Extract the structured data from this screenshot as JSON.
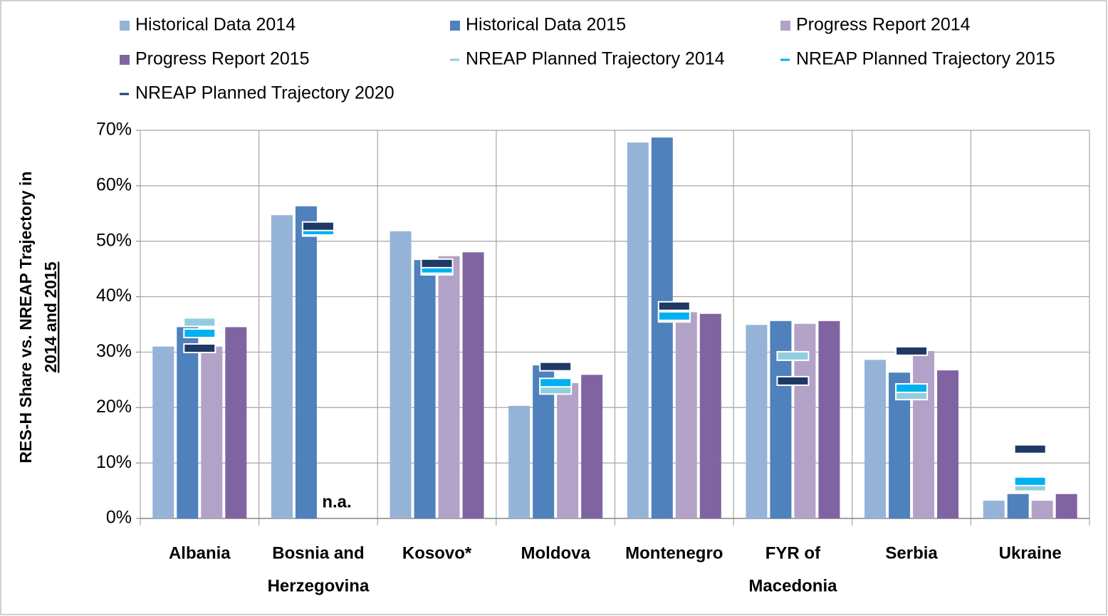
{
  "chart_data": {
    "type": "bar",
    "y_label": [
      "RES-H Share vs. NREAP Trajectory in",
      "2014 and 2015"
    ],
    "annotation": "n.a.",
    "categories": [
      [
        "Albania"
      ],
      [
        "Bosnia and",
        "Herzegovina"
      ],
      [
        "Kosovo*"
      ],
      [
        "Moldova"
      ],
      [
        "Montenegro"
      ],
      [
        "FYR of",
        "Macedonia"
      ],
      [
        "Serbia"
      ],
      [
        "Ukraine"
      ]
    ],
    "ylim": [
      0,
      70
    ],
    "yticks": [
      {
        "value": 0,
        "label": "0%"
      },
      {
        "value": 10,
        "label": "10%"
      },
      {
        "value": 20,
        "label": "20%"
      },
      {
        "value": 30,
        "label": "30%"
      },
      {
        "value": 40,
        "label": "40%"
      },
      {
        "value": 50,
        "label": "50%"
      },
      {
        "value": 60,
        "label": "60%"
      },
      {
        "value": 70,
        "label": "70%"
      }
    ],
    "grid": true,
    "series": [
      {
        "name": "Historical Data 2014",
        "color": "#95b3d7",
        "style": "bar",
        "values": [
          31,
          54.7,
          51.8,
          20.3,
          67.8,
          34.9,
          28.6,
          3.2
        ]
      },
      {
        "name": "Historical Data 2015",
        "color": "#4f81bd",
        "style": "bar",
        "values": [
          34.5,
          56.3,
          46.6,
          27.6,
          68.7,
          35.6,
          26.3,
          4.4
        ]
      },
      {
        "name": "Progress Report 2014",
        "color": "#b3a2c7",
        "style": "bar",
        "values": [
          31,
          null,
          47.3,
          24.4,
          37.2,
          35.1,
          30.2,
          3.2
        ]
      },
      {
        "name": "Progress Report 2015",
        "color": "#8064a2",
        "style": "bar",
        "values": [
          34.5,
          null,
          48,
          25.9,
          36.9,
          35.6,
          26.7,
          4.4
        ]
      },
      {
        "name": "NREAP Planned Trajectory 2014",
        "color": "#93cddd",
        "style": "dash",
        "values": [
          35.4,
          51.7,
          44.7,
          23.2,
          36.2,
          29.3,
          22.2,
          5.7
        ]
      },
      {
        "name": "NREAP Planned Trajectory 2015",
        "color": "#00b0f0",
        "style": "dash",
        "values": [
          33.4,
          51.9,
          45,
          24.5,
          36.5,
          null,
          23.5,
          6.7
        ]
      },
      {
        "name": "NREAP Planned Trajectory 2020",
        "color": "#1f3864",
        "style": "dash",
        "values": [
          30.7,
          52.7,
          46,
          27.4,
          38.3,
          24.8,
          30.2,
          12.5
        ]
      }
    ]
  }
}
